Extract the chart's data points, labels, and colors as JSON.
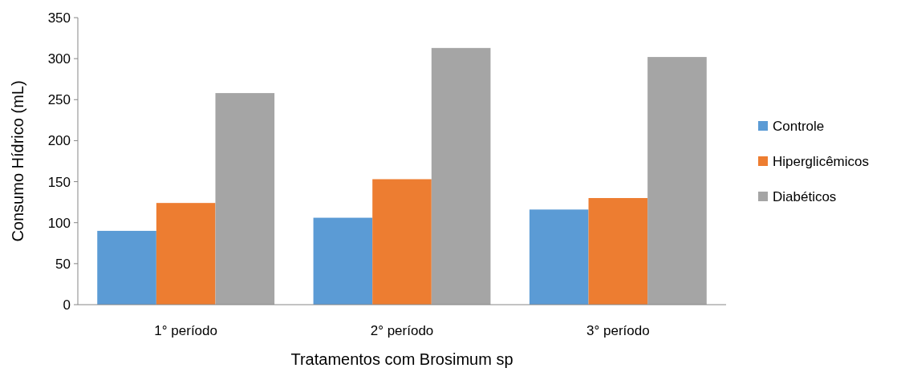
{
  "chart_data": {
    "type": "bar",
    "xlabel": "Tratamentos com Brosimum sp",
    "ylabel": "Consumo Hídrico (mL)",
    "categories": [
      "1° período",
      "2° período",
      "3° período"
    ],
    "series": [
      {
        "name": "Controle",
        "color": "#5b9bd5",
        "values": [
          90,
          106,
          116
        ]
      },
      {
        "name": "Hiperglicêmicos",
        "color": "#ed7d31",
        "values": [
          124,
          153,
          130
        ]
      },
      {
        "name": "Diabéticos",
        "color": "#a5a5a5",
        "values": [
          258,
          313,
          302
        ]
      }
    ],
    "ylim": [
      0,
      350
    ],
    "yticks": [
      0,
      50,
      100,
      150,
      200,
      250,
      300,
      350
    ],
    "grid": false,
    "legend": "right"
  }
}
